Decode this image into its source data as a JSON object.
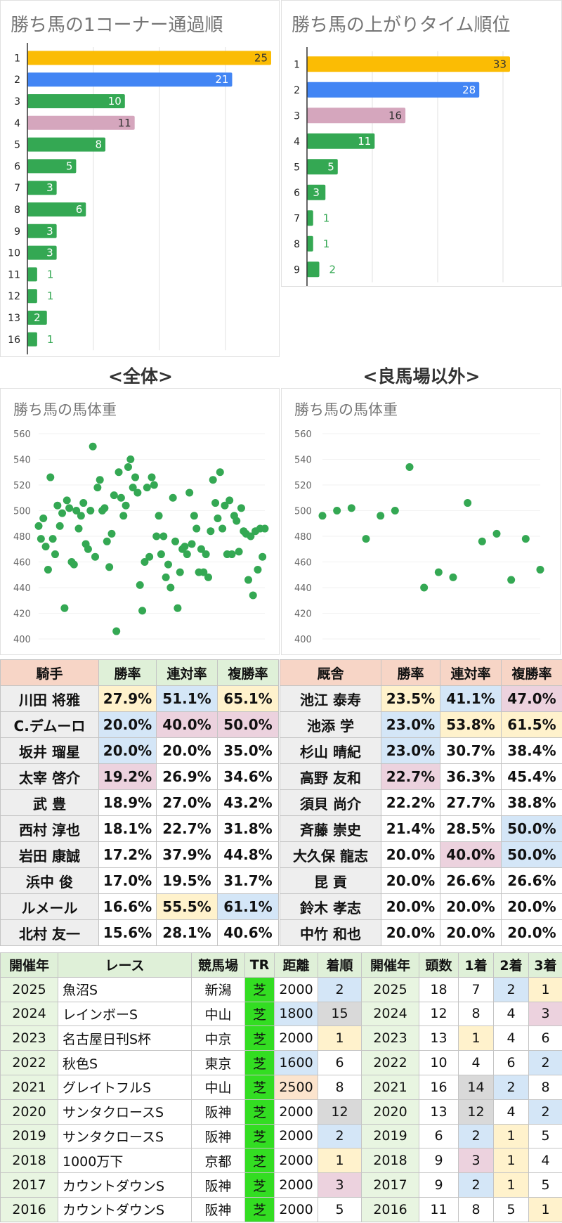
{
  "corner_chart": {
    "title": "勝ち馬の1コーナー通過順",
    "chart_data": {
      "type": "bar",
      "orientation": "horizontal",
      "categories": [
        "1",
        "2",
        "3",
        "4",
        "5",
        "6",
        "7",
        "8",
        "9",
        "10",
        "11",
        "12",
        "13",
        "16"
      ],
      "values": [
        25,
        21,
        10,
        11,
        8,
        5,
        3,
        6,
        3,
        3,
        1,
        1,
        2,
        1
      ],
      "value_max": 25,
      "colors": [
        "#fbbc04",
        "#4285f4",
        "#34a853",
        "#d5a6bd",
        "#34a853",
        "#34a853",
        "#34a853",
        "#34a853",
        "#34a853",
        "#34a853",
        "#34a853",
        "#34a853",
        "#34a853",
        "#34a853"
      ]
    }
  },
  "last3f_chart": {
    "title": "勝ち馬の上がりタイム順位",
    "chart_data": {
      "type": "bar",
      "orientation": "horizontal",
      "categories": [
        "1",
        "2",
        "3",
        "4",
        "5",
        "6",
        "7",
        "8",
        "9"
      ],
      "values": [
        33,
        28,
        16,
        11,
        5,
        3,
        1,
        1,
        2
      ],
      "value_max": 33,
      "colors": [
        "#fbbc04",
        "#4285f4",
        "#d5a6bd",
        "#34a853",
        "#34a853",
        "#34a853",
        "#34a853",
        "#34a853",
        "#34a853"
      ]
    }
  },
  "captions": {
    "all": "<全体>",
    "non_good": "<良馬場以外>"
  },
  "weight_all": {
    "title": "勝ち馬の馬体重",
    "chart_data": {
      "type": "scatter",
      "ylim": [
        400,
        560
      ],
      "yticks": [
        "560",
        "540",
        "520",
        "500",
        "480",
        "460",
        "440",
        "420",
        "400"
      ],
      "series": [
        {
          "color": "#34a853",
          "points": [
            [
              1,
              488
            ],
            [
              2,
              478
            ],
            [
              3,
              494
            ],
            [
              4,
              472
            ],
            [
              5,
              454
            ],
            [
              6,
              526
            ],
            [
              7,
              478
            ],
            [
              8,
              466
            ],
            [
              9,
              504
            ],
            [
              10,
              488
            ],
            [
              11,
              498
            ],
            [
              12,
              424
            ],
            [
              13,
              508
            ],
            [
              14,
              502
            ],
            [
              15,
              460
            ],
            [
              16,
              458
            ],
            [
              17,
              500
            ],
            [
              18,
              486
            ],
            [
              19,
              496
            ],
            [
              20,
              506
            ],
            [
              21,
              474
            ],
            [
              22,
              470
            ],
            [
              23,
              500
            ],
            [
              24,
              550
            ],
            [
              25,
              464
            ],
            [
              26,
              518
            ],
            [
              27,
              524
            ],
            [
              28,
              500
            ],
            [
              29,
              502
            ],
            [
              30,
              476
            ],
            [
              31,
              456
            ],
            [
              32,
              482
            ],
            [
              33,
              512
            ],
            [
              34,
              406
            ],
            [
              35,
              530
            ],
            [
              36,
              510
            ],
            [
              37,
              496
            ],
            [
              38,
              504
            ],
            [
              39,
              534
            ],
            [
              40,
              540
            ],
            [
              41,
              518
            ],
            [
              42,
              526
            ],
            [
              43,
              514
            ],
            [
              44,
              442
            ],
            [
              45,
              422
            ],
            [
              46,
              460
            ],
            [
              47,
              518
            ],
            [
              48,
              464
            ],
            [
              49,
              526
            ],
            [
              50,
              520
            ],
            [
              51,
              480
            ],
            [
              52,
              496
            ],
            [
              53,
              466
            ],
            [
              54,
              480
            ],
            [
              55,
              448
            ],
            [
              56,
              458
            ],
            [
              57,
              440
            ],
            [
              58,
              510
            ],
            [
              59,
              476
            ],
            [
              60,
              424
            ],
            [
              61,
              452
            ],
            [
              62,
              470
            ],
            [
              63,
              472
            ],
            [
              64,
              466
            ],
            [
              65,
              514
            ],
            [
              66,
              474
            ],
            [
              67,
              496
            ],
            [
              68,
              486
            ],
            [
              69,
              452
            ],
            [
              70,
              470
            ],
            [
              71,
              452
            ],
            [
              72,
              466
            ],
            [
              73,
              448
            ],
            [
              74,
              484
            ],
            [
              75,
              524
            ],
            [
              76,
              506
            ],
            [
              77,
              494
            ],
            [
              78,
              530
            ],
            [
              79,
              486
            ],
            [
              80,
              504
            ],
            [
              81,
              466
            ],
            [
              82,
              508
            ],
            [
              83,
              466
            ],
            [
              84,
              496
            ],
            [
              85,
              492
            ],
            [
              86,
              468
            ],
            [
              87,
              502
            ],
            [
              88,
              484
            ],
            [
              89,
              482
            ],
            [
              90,
              446
            ],
            [
              91,
              480
            ],
            [
              92,
              434
            ],
            [
              93,
              484
            ],
            [
              94,
              454
            ],
            [
              95,
              486
            ],
            [
              96,
              464
            ],
            [
              97,
              486
            ]
          ]
        }
      ]
    }
  },
  "weight_non_good": {
    "title": "勝ち馬の馬体重",
    "chart_data": {
      "type": "scatter",
      "ylim": [
        400,
        560
      ],
      "yticks": [
        "560",
        "540",
        "520",
        "500",
        "480",
        "460",
        "440",
        "420",
        "400"
      ],
      "series": [
        {
          "color": "#34a853",
          "points": [
            [
              1,
              496
            ],
            [
              2,
              500
            ],
            [
              3,
              502
            ],
            [
              4,
              478
            ],
            [
              5,
              496
            ],
            [
              6,
              500
            ],
            [
              7,
              534
            ],
            [
              8,
              440
            ],
            [
              9,
              452
            ],
            [
              10,
              448
            ],
            [
              11,
              506
            ],
            [
              12,
              476
            ],
            [
              13,
              482
            ],
            [
              14,
              446
            ],
            [
              15,
              478
            ],
            [
              16,
              454
            ]
          ]
        }
      ]
    }
  },
  "jockey_table": {
    "headers": [
      "騎手",
      "勝率",
      "連対率",
      "複勝率"
    ],
    "rows": [
      {
        "name": "川田 将雅",
        "win": "27.9%",
        "top2": "51.1%",
        "top3": "65.1%"
      },
      {
        "name": "C.デムーロ",
        "win": "20.0%",
        "top2": "40.0%",
        "top3": "50.0%"
      },
      {
        "name": "坂井 瑠星",
        "win": "20.0%",
        "top2": "20.0%",
        "top3": "35.0%"
      },
      {
        "name": "太宰 啓介",
        "win": "19.2%",
        "top2": "26.9%",
        "top3": "34.6%"
      },
      {
        "name": "武 豊",
        "win": "18.9%",
        "top2": "27.0%",
        "top3": "43.2%"
      },
      {
        "name": "西村 淳也",
        "win": "18.1%",
        "top2": "22.7%",
        "top3": "31.8%"
      },
      {
        "name": "岩田 康誠",
        "win": "17.2%",
        "top2": "37.9%",
        "top3": "44.8%"
      },
      {
        "name": "浜中 俊",
        "win": "17.0%",
        "top2": "19.5%",
        "top3": "31.7%"
      },
      {
        "name": "ルメール",
        "win": "16.6%",
        "top2": "55.5%",
        "top3": "61.1%"
      },
      {
        "name": "北村 友一",
        "win": "15.6%",
        "top2": "28.1%",
        "top3": "40.6%"
      }
    ]
  },
  "trainer_table": {
    "headers": [
      "厩舎",
      "勝率",
      "連対率",
      "複勝率"
    ],
    "rows": [
      {
        "name": "池江 泰寿",
        "win": "23.5%",
        "top2": "41.1%",
        "top3": "47.0%"
      },
      {
        "name": "池添 学",
        "win": "23.0%",
        "top2": "53.8%",
        "top3": "61.5%"
      },
      {
        "name": "杉山 晴紀",
        "win": "23.0%",
        "top2": "30.7%",
        "top3": "38.4%"
      },
      {
        "name": "高野 友和",
        "win": "22.7%",
        "top2": "36.3%",
        "top3": "45.4%"
      },
      {
        "name": "須貝 尚介",
        "win": "22.2%",
        "top2": "27.7%",
        "top3": "38.8%"
      },
      {
        "name": "斉藤 崇史",
        "win": "21.4%",
        "top2": "28.5%",
        "top3": "50.0%"
      },
      {
        "name": "大久保 龍志",
        "win": "20.0%",
        "top2": "40.0%",
        "top3": "50.0%"
      },
      {
        "name": "昆 貢",
        "win": "20.0%",
        "top2": "26.6%",
        "top3": "26.6%"
      },
      {
        "name": "鈴木 孝志",
        "win": "20.0%",
        "top2": "20.0%",
        "top3": "20.0%"
      },
      {
        "name": "中竹 和也",
        "win": "20.0%",
        "top2": "20.0%",
        "top3": "20.0%"
      }
    ]
  },
  "race_table": {
    "headers": [
      "開催年",
      "レース",
      "競馬場",
      "TR",
      "距離",
      "着順"
    ],
    "rows": [
      {
        "year": "2025",
        "race": "魚沼S",
        "course": "新潟",
        "tr": "芝",
        "dist": "2000",
        "pos": "2"
      },
      {
        "year": "2024",
        "race": "レインボーS",
        "course": "中山",
        "tr": "芝",
        "dist": "1800",
        "pos": "15"
      },
      {
        "year": "2023",
        "race": "名古屋日刊S杯",
        "course": "中京",
        "tr": "芝",
        "dist": "2000",
        "pos": "1"
      },
      {
        "year": "2022",
        "race": "秋色S",
        "course": "東京",
        "tr": "芝",
        "dist": "1600",
        "pos": "6"
      },
      {
        "year": "2021",
        "race": "グレイトフルS",
        "course": "中山",
        "tr": "芝",
        "dist": "2500",
        "pos": "8"
      },
      {
        "year": "2020",
        "race": "サンタクロースS",
        "course": "阪神",
        "tr": "芝",
        "dist": "2000",
        "pos": "12"
      },
      {
        "year": "2019",
        "race": "サンタクロースS",
        "course": "阪神",
        "tr": "芝",
        "dist": "2000",
        "pos": "2"
      },
      {
        "year": "2018",
        "race": "1000万下",
        "course": "京都",
        "tr": "芝",
        "dist": "2000",
        "pos": "1"
      },
      {
        "year": "2017",
        "race": "カウントダウンS",
        "course": "阪神",
        "tr": "芝",
        "dist": "2000",
        "pos": "3"
      },
      {
        "year": "2016",
        "race": "カウントダウンS",
        "course": "阪神",
        "tr": "芝",
        "dist": "2000",
        "pos": "5"
      }
    ]
  },
  "field_table": {
    "headers": [
      "開催年",
      "頭数",
      "1着",
      "2着",
      "3着"
    ],
    "rows": [
      {
        "year": "2025",
        "runners": "18",
        "p1": "7",
        "p2": "2",
        "p3": "1"
      },
      {
        "year": "2024",
        "runners": "12",
        "p1": "8",
        "p2": "4",
        "p3": "3"
      },
      {
        "year": "2023",
        "runners": "13",
        "p1": "1",
        "p2": "4",
        "p3": "6"
      },
      {
        "year": "2022",
        "runners": "10",
        "p1": "4",
        "p2": "6",
        "p3": "2"
      },
      {
        "year": "2021",
        "runners": "16",
        "p1": "14",
        "p2": "2",
        "p3": "8"
      },
      {
        "year": "2020",
        "runners": "13",
        "p1": "12",
        "p2": "4",
        "p3": "2"
      },
      {
        "year": "2019",
        "runners": "6",
        "p1": "2",
        "p2": "1",
        "p3": "5"
      },
      {
        "year": "2018",
        "runners": "9",
        "p1": "3",
        "p2": "1",
        "p3": "4"
      },
      {
        "year": "2017",
        "runners": "9",
        "p1": "2",
        "p2": "1",
        "p3": "5"
      },
      {
        "year": "2016",
        "runners": "11",
        "p1": "8",
        "p2": "5",
        "p3": "1"
      }
    ]
  }
}
